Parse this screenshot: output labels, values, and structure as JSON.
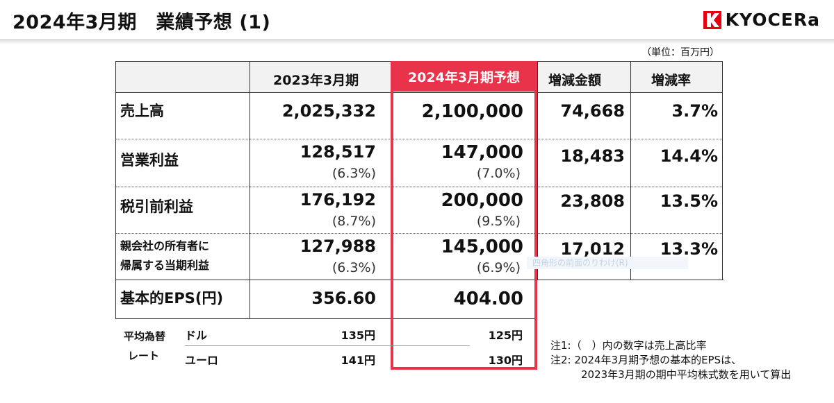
{
  "header": {
    "title": "2024年3月期　業績予想 (1)",
    "logo_text": "KYOCERa",
    "logo_color": "#e60012"
  },
  "unit": "（単位：百万円）",
  "columns": {
    "fy2023": "2023年3月期",
    "fy2024": "2024年3月期予想",
    "change_amount": "増減金額",
    "change_rate": "増減率"
  },
  "rows": [
    {
      "label": "売上高",
      "fy2023": "2,025,332",
      "fy2023_pct": "",
      "fy2024": "2,100,000",
      "fy2024_pct": "",
      "change": "74,668",
      "rate": "3.7%"
    },
    {
      "label": "営業利益",
      "fy2023": "128,517",
      "fy2023_pct": "(6.3%)",
      "fy2024": "147,000",
      "fy2024_pct": "(7.0%)",
      "change": "18,483",
      "rate": "14.4%"
    },
    {
      "label": "税引前利益",
      "fy2023": "176,192",
      "fy2023_pct": "(8.7%)",
      "fy2024": "200,000",
      "fy2024_pct": "(9.5%)",
      "change": "23,808",
      "rate": "13.5%"
    },
    {
      "label_line1": "親会社の所有者に",
      "label_line2": "帰属する当期利益",
      "fy2023": "127,988",
      "fy2023_pct": "(6.3%)",
      "fy2024": "145,000",
      "fy2024_pct": "(6.9%)",
      "change": "17,012",
      "rate": "13.3%"
    },
    {
      "label": "基本的EPS(円)",
      "fy2023": "356.60",
      "fy2024": "404.00"
    }
  ],
  "rates": {
    "label_line1": "平均為替",
    "label_line2": "レート",
    "dollar": {
      "currency": "ドル",
      "fy2023": "135円",
      "fy2024": "125円"
    },
    "euro": {
      "currency": "ユーロ",
      "fy2023": "141円",
      "fy2024": "130円"
    }
  },
  "notes": {
    "note1": "注1:（　）内の数字は売上高比率",
    "note2": "注2:  2024年3月期予想の基本的EPSは、",
    "note3": "2023年3月期の期中平均株式数を用いて算出"
  },
  "ghost_tooltip": "四角形の前面のりわけ(R)",
  "accent_color": "#e8334a"
}
